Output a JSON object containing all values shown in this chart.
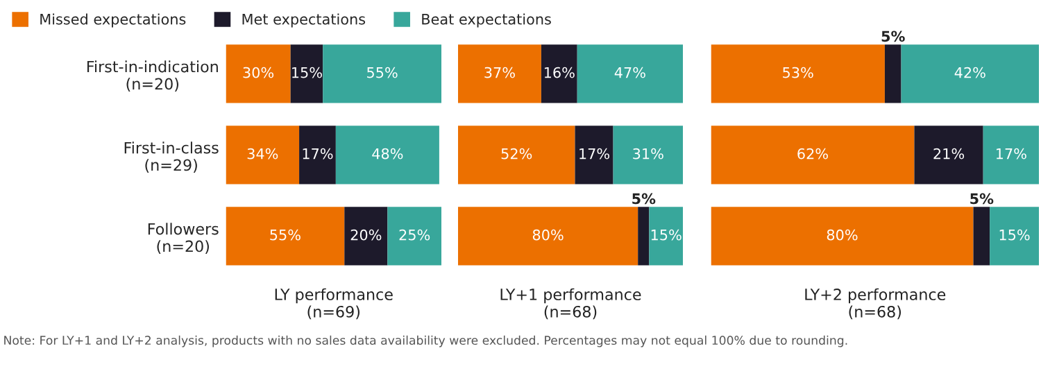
{
  "chart_data": [
    {
      "type": "bar",
      "orientation": "horizontal",
      "stacked": true,
      "xlabel": "LY performance\n(n=69)",
      "categories": [
        "First-in-indication\n(n=20)",
        "First-in-class\n(n=29)",
        "Followers\n(n=20)"
      ],
      "xlim": [
        0,
        100
      ],
      "tick_labels": "y",
      "legend": "top left",
      "annotations": [
        "Note: For LY+1 and LY+2 analysis, products with no sales data availability were excluded. Percentages may not equal 100% due to rounding."
      ],
      "series": [
        {
          "name": "Missed expectations",
          "color": "#ec7000",
          "values": [
            30,
            34,
            55
          ],
          "value_labels": [
            "30%",
            "34%",
            "55%"
          ]
        },
        {
          "name": "Met expectations",
          "color": "#1d1a2b",
          "values": [
            15,
            17,
            20
          ],
          "value_labels": [
            "15%",
            "17%",
            "20%"
          ]
        },
        {
          "name": "Beat expectations",
          "color": "#38a79b",
          "values": [
            55,
            48,
            25
          ],
          "value_labels": [
            "55%",
            "48%",
            "25%"
          ]
        }
      ]
    },
    {
      "type": "bar",
      "orientation": "horizontal",
      "stacked": true,
      "xlabel": "LY+1 performance\n(n=68)",
      "categories": [
        null,
        null,
        null
      ],
      "xlim": [
        0,
        100
      ],
      "tick_labels": false,
      "series": [
        {
          "color": "#ec7000",
          "values": [
            37,
            52,
            80
          ],
          "value_labels": [
            "37%",
            "52%",
            "80%"
          ]
        },
        {
          "color": "#1d1a2b",
          "values": [
            16,
            17,
            5
          ],
          "value_labels": [
            "16%",
            "17%",
            "5%"
          ]
        },
        {
          "color": "#38a79b",
          "values": [
            47,
            31,
            15
          ],
          "value_labels": [
            "47%",
            "31%",
            "15%"
          ]
        }
      ]
    },
    {
      "type": "bar",
      "orientation": "horizontal",
      "stacked": true,
      "xlabel": "LY+2 performance\n(n=68)",
      "categories": [
        null,
        null,
        null
      ],
      "xlim": [
        0,
        100
      ],
      "tick_labels": false,
      "series": [
        {
          "color": "#ec7000",
          "values": [
            53,
            62,
            80
          ],
          "value_labels": [
            "53%",
            "62%",
            "80%"
          ]
        },
        {
          "color": "#1d1a2b",
          "values": [
            5,
            21,
            5
          ],
          "value_labels": [
            "5%",
            "21%",
            "5%"
          ]
        },
        {
          "color": "#38a79b",
          "values": [
            42,
            17,
            15
          ],
          "value_labels": [
            "42%",
            "17%",
            "15%"
          ]
        }
      ]
    }
  ]
}
